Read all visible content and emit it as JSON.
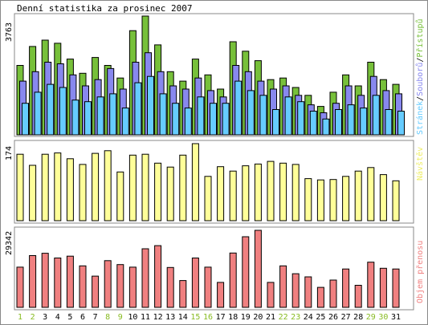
{
  "title": "Denní statistika za prosinec 2007",
  "colors": {
    "hits": "#77c03a",
    "files": "#8888ee",
    "pages": "#66ccff",
    "visits": "#ffff99",
    "kbytes": "#f08080",
    "weekend_day": "#88bb22",
    "weekday": "#000000",
    "bar_edge": "#000000"
  },
  "days": [
    "1",
    "2",
    "3",
    "4",
    "5",
    "6",
    "7",
    "8",
    "9",
    "10",
    "11",
    "12",
    "13",
    "14",
    "15",
    "16",
    "17",
    "18",
    "19",
    "20",
    "21",
    "22",
    "23",
    "24",
    "25",
    "26",
    "27",
    "28",
    "29",
    "30",
    "31"
  ],
  "weekend_days": [
    1,
    2,
    8,
    9,
    15,
    16,
    22,
    23,
    29,
    30
  ],
  "chart_data": [
    {
      "type": "bar",
      "name": "hits-files-pages",
      "ymax_label": "3763",
      "ylim": [
        0,
        3763
      ],
      "legend": [
        "Stránek",
        "Souborů",
        "Přístupů"
      ],
      "legend_sep": "/",
      "categories": [
        "1",
        "2",
        "3",
        "4",
        "5",
        "6",
        "7",
        "8",
        "9",
        "10",
        "11",
        "12",
        "13",
        "14",
        "15",
        "16",
        "17",
        "18",
        "19",
        "20",
        "21",
        "22",
        "23",
        "24",
        "25",
        "26",
        "27",
        "28",
        "29",
        "30",
        "31"
      ],
      "series": [
        {
          "name": "Přístupů",
          "values": [
            2200,
            2800,
            3000,
            2900,
            2400,
            1950,
            2450,
            2200,
            1800,
            3300,
            3763,
            2850,
            2000,
            1700,
            2400,
            1900,
            1450,
            2950,
            2650,
            2350,
            1750,
            1800,
            1500,
            1250,
            900,
            1350,
            1900,
            1550,
            2300,
            1750,
            1600
          ]
        },
        {
          "name": "Souborů",
          "values": [
            1700,
            2000,
            2300,
            2250,
            1900,
            1550,
            1750,
            2100,
            1450,
            2300,
            2600,
            2000,
            1550,
            1450,
            1800,
            1400,
            1200,
            2200,
            2000,
            1700,
            1450,
            1550,
            1250,
            950,
            700,
            1000,
            1550,
            1250,
            1850,
            1400,
            1300
          ]
        },
        {
          "name": "Stránek",
          "values": [
            1000,
            1350,
            1600,
            1500,
            1100,
            1050,
            1200,
            1300,
            850,
            1650,
            1850,
            1300,
            1000,
            850,
            1200,
            1000,
            1000,
            1700,
            1400,
            1250,
            800,
            1200,
            1050,
            750,
            500,
            800,
            950,
            850,
            1250,
            800,
            750
          ]
        }
      ]
    },
    {
      "type": "bar",
      "name": "visits",
      "ymax_label": "174",
      "ylim": [
        0,
        174
      ],
      "legend": [
        "Návštěv"
      ],
      "categories": [
        "1",
        "2",
        "3",
        "4",
        "5",
        "6",
        "7",
        "8",
        "9",
        "10",
        "11",
        "12",
        "13",
        "14",
        "15",
        "16",
        "17",
        "18",
        "19",
        "20",
        "21",
        "22",
        "23",
        "24",
        "25",
        "26",
        "27",
        "28",
        "29",
        "30",
        "31"
      ],
      "series": [
        {
          "name": "Návštěv",
          "values": [
            150,
            125,
            150,
            153,
            140,
            127,
            152,
            158,
            110,
            148,
            150,
            130,
            121,
            148,
            174,
            100,
            122,
            112,
            124,
            128,
            134,
            130,
            127,
            95,
            92,
            93,
            100,
            112,
            120,
            104,
            90
          ]
        }
      ]
    },
    {
      "type": "bar",
      "name": "kbytes",
      "ymax_label": "29342",
      "ylim": [
        0,
        29342
      ],
      "legend": [
        "Objem přenosu"
      ],
      "categories": [
        "1",
        "2",
        "3",
        "4",
        "5",
        "6",
        "7",
        "8",
        "9",
        "10",
        "11",
        "12",
        "13",
        "14",
        "15",
        "16",
        "17",
        "18",
        "19",
        "20",
        "21",
        "22",
        "23",
        "24",
        "25",
        "26",
        "27",
        "28",
        "29",
        "30",
        "31"
      ],
      "series": [
        {
          "name": "Objem přenosu",
          "values": [
            15300,
            19700,
            20600,
            18800,
            19500,
            15800,
            11900,
            17800,
            16300,
            15300,
            22300,
            23500,
            15200,
            10200,
            18800,
            15300,
            9500,
            20700,
            26900,
            29342,
            9500,
            15800,
            12800,
            11600,
            7600,
            10400,
            14600,
            8400,
            17200,
            14900,
            14600
          ]
        }
      ]
    }
  ]
}
